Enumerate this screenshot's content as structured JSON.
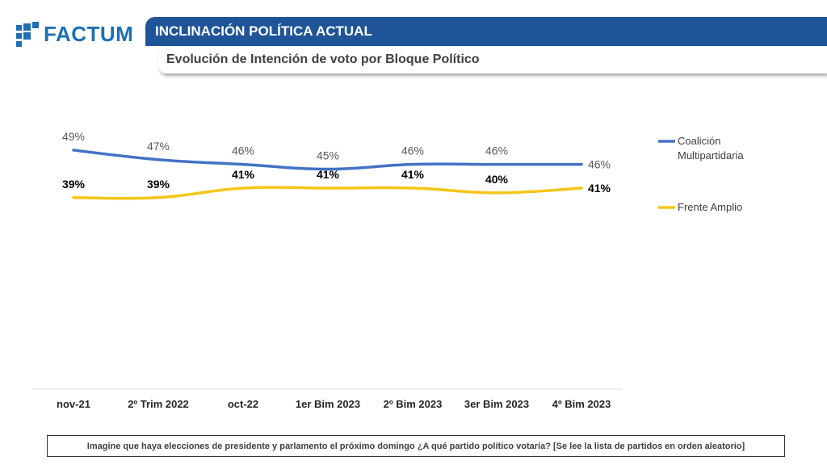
{
  "brand": {
    "name": "FACTUM",
    "color": "#1f6fb2"
  },
  "header": {
    "title": "INCLINACIÓN POLÍTICA ACTUAL",
    "subtitle": "Evolución de Intención de voto por Bloque Político",
    "bar_color": "#1f5597"
  },
  "footnote": "Imagine que haya elecciones de presidente y parlamento el próximo domingo ¿A qué partido político votaría? [Se lee la lista de partidos en orden aleatorio]",
  "chart_data": {
    "type": "line",
    "categories": [
      "nov-21",
      "2º Trim 2022",
      "oct-22",
      "1er Bim 2023",
      "2º Bim 2023",
      "3er Bim 2023",
      "4º Bim 2023"
    ],
    "ylim": [
      0,
      60
    ],
    "grid": false,
    "legend_position": "right",
    "series": [
      {
        "name": "Coalición Multipartidaria",
        "legend_lines": [
          "Coalición",
          "Multipartidaria"
        ],
        "color": "#4472c4",
        "values": [
          49,
          47,
          46,
          45,
          46,
          46,
          46
        ],
        "labels": [
          "49%",
          "47%",
          "46%",
          "45%",
          "46%",
          "46%",
          "46%"
        ]
      },
      {
        "name": "Frente Amplio",
        "legend_lines": [
          "Frente Amplio"
        ],
        "color": "#f5c518",
        "values": [
          39,
          39,
          41,
          41,
          41,
          40,
          41
        ],
        "labels": [
          "39%",
          "39%",
          "41%",
          "41%",
          "41%",
          "40%",
          "41%"
        ]
      }
    ]
  }
}
